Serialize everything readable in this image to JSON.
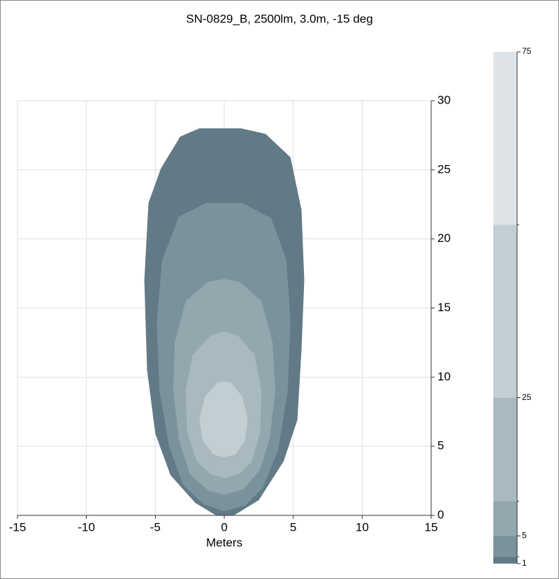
{
  "chart_data": {
    "type": "contour",
    "title": "SN-0829_B, 2500lm, 3.0m, -15 deg",
    "xlabel": "Meters",
    "xlim": [
      -15,
      15
    ],
    "ylim": [
      0,
      30
    ],
    "xticks": [
      -15,
      -10,
      -5,
      0,
      5,
      10,
      15
    ],
    "yticks": [
      0,
      5,
      10,
      15,
      20,
      25,
      30
    ],
    "grid": true,
    "contours": [
      {
        "level": 1,
        "color": "#627a86",
        "x": [
          -3.2,
          -4.6,
          -5.5,
          -5.8,
          -5.6,
          -5.0,
          -3.9,
          -2.1,
          -0.6,
          0.7,
          2.5,
          4.3,
          5.3,
          5.6,
          5.8,
          5.6,
          4.8,
          3.0,
          1.2,
          -1.8
        ],
        "y": [
          27.4,
          25.1,
          22.6,
          17.0,
          10.5,
          5.9,
          2.9,
          0.9,
          0,
          0,
          1.1,
          3.9,
          6.9,
          12.0,
          17.0,
          22.1,
          25.9,
          27.6,
          28.0,
          28.0
        ]
      },
      {
        "level": 2,
        "color": "#7a929c",
        "x": [
          -3.3,
          -4.5,
          -4.9,
          -4.7,
          -4.0,
          -3.0,
          -1.5,
          0,
          1.5,
          2.8,
          3.9,
          4.6,
          4.8,
          4.5,
          3.4,
          1.3,
          -1.3
        ],
        "y": [
          21.6,
          18.5,
          14.0,
          9.0,
          5.0,
          2.2,
          0.8,
          0.3,
          0.7,
          2.0,
          4.7,
          9.0,
          14.0,
          18.5,
          21.5,
          22.6,
          22.6
        ]
      },
      {
        "level": 5,
        "color": "#93a7af",
        "x": [
          -1.2,
          -2.8,
          -3.6,
          -3.7,
          -3.3,
          -2.5,
          -1.2,
          0,
          1.4,
          2.6,
          3.3,
          3.7,
          3.5,
          2.7,
          1.1,
          0
        ],
        "y": [
          16.9,
          15.5,
          12.5,
          9.0,
          5.5,
          3.0,
          1.8,
          1.5,
          1.9,
          3.3,
          5.6,
          9.0,
          12.5,
          15.5,
          16.9,
          17.1
        ]
      },
      {
        "level": 10,
        "color": "#a9b9c0",
        "x": [
          -1.0,
          -2.3,
          -2.8,
          -2.7,
          -2.0,
          -1.0,
          0,
          1.1,
          2.0,
          2.6,
          2.7,
          2.2,
          1.0,
          0
        ],
        "y": [
          13.0,
          11.6,
          9.0,
          6.0,
          3.9,
          3.0,
          2.7,
          3.0,
          3.9,
          6.0,
          9.0,
          11.6,
          13.0,
          13.3
        ]
      },
      {
        "level": 25,
        "color": "#c3ced3",
        "x": [
          -0.5,
          -1.4,
          -1.8,
          -1.6,
          -0.8,
          0,
          0.8,
          1.5,
          1.7,
          1.3,
          0.5,
          0
        ],
        "y": [
          9.6,
          8.6,
          7.0,
          5.5,
          4.4,
          4.2,
          4.4,
          5.4,
          7.0,
          8.6,
          9.6,
          9.7
        ]
      }
    ],
    "colorbar": {
      "clim": [
        1,
        75
      ],
      "levels": [
        1,
        2,
        5,
        10,
        25,
        50,
        75
      ],
      "colors": [
        "#627a86",
        "#7a929c",
        "#93a7af",
        "#a9b9c0",
        "#c3ced3",
        "#dde3e6"
      ],
      "ticks": [
        1,
        5,
        25,
        75
      ]
    }
  }
}
